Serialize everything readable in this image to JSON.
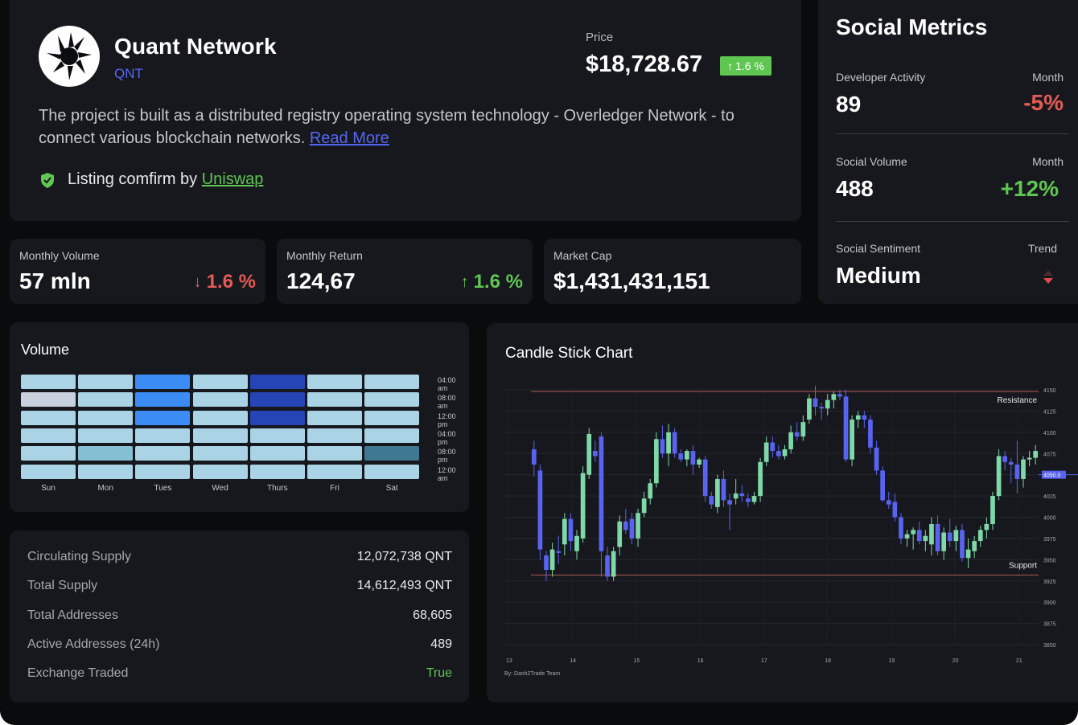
{
  "header": {
    "name": "Quant Network",
    "ticker": "QNT",
    "price_label": "Price",
    "price": "$18,728.67",
    "price_change": "1.6 %",
    "description": "The project is built as a distributed registry operating system technology - Overledger Network - to connect various blockchain networks.",
    "read_more": "Read More",
    "listing_text": "Listing comfirm by",
    "listing_link": "Uniswap"
  },
  "stats": [
    {
      "label": "Monthly Volume",
      "value": "57 mln",
      "change": "1.6 %",
      "direction": "down"
    },
    {
      "label": "Monthly Return",
      "value": "124,67",
      "change": "1.6 %",
      "direction": "up"
    },
    {
      "label": "Market Cap",
      "value": "$1,431,431,151"
    }
  ],
  "social": {
    "title": "Social Metrics",
    "developer": {
      "label": "Developer Activity",
      "period": "Month",
      "value": "89",
      "change": "-5%"
    },
    "volume": {
      "label": "Social Volume",
      "period": "Month",
      "value": "488",
      "change": "+12%"
    },
    "sentiment": {
      "label": "Social Sentiment",
      "trend_label": "Trend",
      "value": "Medium"
    }
  },
  "volume_heatmap": {
    "title": "Volume",
    "days": [
      "Sun",
      "Mon",
      "Tues",
      "Wed",
      "Thurs",
      "Fri",
      "Sat"
    ],
    "times": [
      "04:00 am",
      "08:00 am",
      "12:00 pm",
      "04:00 pm",
      "08:00 pm",
      "12:00 am"
    ],
    "levels": [
      [
        1,
        1,
        3,
        1,
        4,
        1,
        1
      ],
      [
        0,
        1,
        3,
        1,
        4,
        1,
        1
      ],
      [
        1,
        1,
        3,
        1,
        4,
        1,
        1
      ],
      [
        1,
        1,
        1,
        1,
        1,
        1,
        1
      ],
      [
        1,
        2,
        1,
        1,
        1,
        1,
        5
      ],
      [
        1,
        1,
        1,
        1,
        1,
        1,
        1
      ]
    ],
    "colors": [
      "#c8d0de",
      "#aad4e6",
      "#84bfd4",
      "#3b8cf5",
      "#2545b6",
      "#3e7891"
    ]
  },
  "supply": [
    {
      "label": "Circulating Supply",
      "value": "12,072,738 QNT"
    },
    {
      "label": "Total Supply",
      "value": "14,612,493 QNT"
    },
    {
      "label": "Total Addresses",
      "value": "68,605"
    },
    {
      "label": "Active Addresses (24h)",
      "value": "489"
    },
    {
      "label": "Exchange Traded",
      "value": "True"
    }
  ],
  "chart_data": {
    "type": "candlestick",
    "title": "Candle Stick Chart",
    "x_ticks": [
      "13",
      "14",
      "15",
      "16",
      "17",
      "18",
      "19",
      "20",
      "21"
    ],
    "y_ticks": [
      4150.0,
      4125.0,
      4100.0,
      4075.0,
      4050.0,
      4025.0,
      4000.0,
      3975.0,
      3950.0,
      3925.0,
      3900.0,
      3875.0,
      3850.0
    ],
    "ylim": [
      3850,
      4150
    ],
    "resistance": 4148,
    "resistance_label": "Resistance",
    "support": 3932,
    "support_label": "Support",
    "current_price_label": "4050.0",
    "current_price": 4050,
    "byline": "By: Dash2Trade Team",
    "colors": {
      "up": "#7fd8a8",
      "down": "#5a63f0",
      "line": "#b15a55"
    },
    "candles": [
      [
        4080,
        4090,
        4048,
        4062
      ],
      [
        4055,
        4062,
        3950,
        3962
      ],
      [
        3955,
        3960,
        3925,
        3938
      ],
      [
        3938,
        3970,
        3930,
        3962
      ],
      [
        3960,
        3978,
        3945,
        3958
      ],
      [
        3968,
        4005,
        3955,
        3998
      ],
      [
        3998,
        4005,
        3960,
        3972
      ],
      [
        3960,
        3985,
        3950,
        3978
      ],
      [
        3975,
        4060,
        3970,
        4052
      ],
      [
        4050,
        4105,
        4045,
        4098
      ],
      [
        4078,
        4090,
        4065,
        4072
      ],
      [
        4095,
        4100,
        3930,
        3960
      ],
      [
        3955,
        3965,
        3925,
        3930
      ],
      [
        3930,
        3965,
        3925,
        3960
      ],
      [
        3965,
        4002,
        3955,
        3995
      ],
      [
        3995,
        4010,
        3980,
        3985
      ],
      [
        3998,
        4005,
        3968,
        3975
      ],
      [
        3975,
        4010,
        3965,
        4005
      ],
      [
        4005,
        4030,
        4000,
        4022
      ],
      [
        4022,
        4045,
        4015,
        4040
      ],
      [
        4040,
        4100,
        4035,
        4092
      ],
      [
        4092,
        4108,
        4070,
        4075
      ],
      [
        4075,
        4110,
        4060,
        4100
      ],
      [
        4100,
        4105,
        4070,
        4075
      ],
      [
        4075,
        4080,
        4065,
        4068
      ],
      [
        4068,
        4080,
        4060,
        4078
      ],
      [
        4078,
        4085,
        4050,
        4062
      ],
      [
        4062,
        4070,
        4058,
        4068
      ],
      [
        4068,
        4072,
        4018,
        4025
      ],
      [
        4025,
        4030,
        4010,
        4015
      ],
      [
        4012,
        4050,
        4005,
        4045
      ],
      [
        4045,
        4055,
        4012,
        4020
      ],
      [
        4020,
        4028,
        3985,
        4015
      ],
      [
        4022,
        4045,
        4015,
        4028
      ],
      [
        4028,
        4038,
        4018,
        4025
      ],
      [
        4022,
        4028,
        4012,
        4018
      ],
      [
        4018,
        4030,
        4015,
        4025
      ],
      [
        4025,
        4070,
        4018,
        4065
      ],
      [
        4065,
        4095,
        4060,
        4088
      ],
      [
        4088,
        4095,
        4070,
        4078
      ],
      [
        4078,
        4085,
        4068,
        4072
      ],
      [
        4072,
        4085,
        4068,
        4080
      ],
      [
        4080,
        4108,
        4075,
        4100
      ],
      [
        4100,
        4112,
        4090,
        4095
      ],
      [
        4095,
        4120,
        4090,
        4112
      ],
      [
        4115,
        4145,
        4110,
        4140
      ],
      [
        4140,
        4155,
        4120,
        4130
      ],
      [
        4130,
        4135,
        4115,
        4128
      ],
      [
        4128,
        4145,
        4120,
        4138
      ],
      [
        4138,
        4148,
        4128,
        4145
      ],
      [
        4145,
        4150,
        4138,
        4142
      ],
      [
        4142,
        4150,
        4065,
        4068
      ],
      [
        4068,
        4120,
        4060,
        4115
      ],
      [
        4115,
        4125,
        4105,
        4120
      ],
      [
        4120,
        4125,
        4105,
        4115
      ],
      [
        4115,
        4120,
        4075,
        4082
      ],
      [
        4082,
        4090,
        4050,
        4055
      ],
      [
        4055,
        4060,
        4018,
        4020
      ],
      [
        4020,
        4030,
        4010,
        4015
      ],
      [
        4018,
        4028,
        3995,
        4000
      ],
      [
        4000,
        4005,
        3968,
        3975
      ],
      [
        3975,
        3985,
        3965,
        3980
      ],
      [
        3980,
        3988,
        3962,
        3985
      ],
      [
        3985,
        3995,
        3968,
        3972
      ],
      [
        3972,
        3985,
        3960,
        3978
      ],
      [
        3968,
        4000,
        3955,
        3992
      ],
      [
        3992,
        4002,
        3955,
        3960
      ],
      [
        3960,
        3988,
        3950,
        3982
      ],
      [
        3982,
        3998,
        3965,
        3972
      ],
      [
        3972,
        3990,
        3960,
        3985
      ],
      [
        3985,
        3992,
        3948,
        3952
      ],
      [
        3952,
        3975,
        3940,
        3962
      ],
      [
        3960,
        3978,
        3952,
        3972
      ],
      [
        3972,
        3990,
        3965,
        3985
      ],
      [
        3985,
        4000,
        3975,
        3992
      ],
      [
        3992,
        4030,
        3985,
        4025
      ],
      [
        4025,
        4080,
        4020,
        4072
      ],
      [
        4072,
        4078,
        4055,
        4065
      ],
      [
        4065,
        4070,
        4040,
        4062
      ],
      [
        4062,
        4090,
        4028,
        4045
      ],
      [
        4045,
        4072,
        4035,
        4068
      ],
      [
        4068,
        4078,
        4060,
        4070
      ],
      [
        4070,
        4085,
        4062,
        4078
      ]
    ]
  }
}
